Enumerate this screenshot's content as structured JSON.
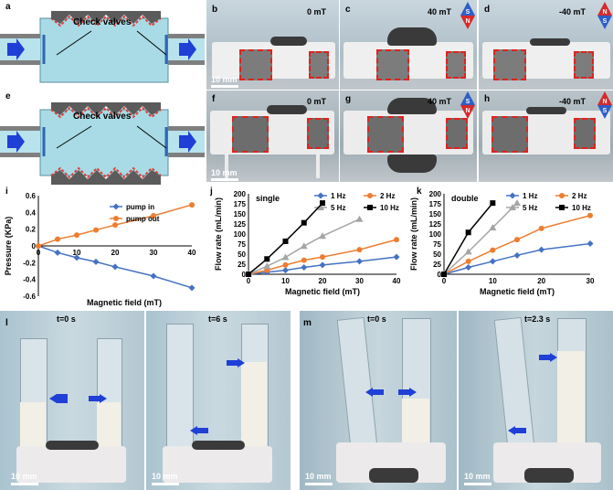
{
  "panel_labels": {
    "a": "a",
    "b": "b",
    "c": "c",
    "d": "d",
    "e": "e",
    "f": "f",
    "g": "g",
    "h": "h",
    "i": "i",
    "j": "j",
    "k": "k",
    "l": "l",
    "m": "m"
  },
  "diagrams": {
    "a": {
      "label": "Check valves"
    },
    "e": {
      "label": "Check valves"
    }
  },
  "photos": {
    "b": {
      "field": "0 mT",
      "scale": "10 mm"
    },
    "c": {
      "field": "40 mT"
    },
    "d": {
      "field": "-40 mT"
    },
    "f": {
      "field": "0 mT",
      "scale": "10 mm"
    },
    "g": {
      "field": "40 mT"
    },
    "h": {
      "field": "-40 mT"
    },
    "l1": {
      "time": "t=0 s",
      "scale": "10 mm"
    },
    "l2": {
      "time": "t=6 s",
      "scale": "10 mm"
    },
    "m1": {
      "time": "t=0 s",
      "scale": "10 mm"
    },
    "m2": {
      "time": "t=2.3 s",
      "scale": "10 mm"
    }
  },
  "magnet_labels": {
    "s": "S",
    "n": "N"
  },
  "chart_data": [
    {
      "id": "i",
      "type": "line",
      "xlabel": "Magnetic field (mT)",
      "ylabel": "Pressure (KPa)",
      "xlim": [
        0,
        40
      ],
      "ylim": [
        -0.6,
        0.6
      ],
      "xticks": [
        "0",
        "10",
        "20",
        "30",
        "40"
      ],
      "yticks": [
        "-0.6",
        "-0.4",
        "-0.2",
        "0",
        "0.2",
        "0.4",
        "0.6"
      ],
      "x": [
        0,
        5,
        10,
        15,
        20,
        30,
        40
      ],
      "series": [
        {
          "name": "pump in",
          "color": "#4472c4",
          "marker": "diamond",
          "values": [
            0,
            -0.08,
            -0.14,
            -0.19,
            -0.25,
            -0.36,
            -0.5
          ]
        },
        {
          "name": "pump out",
          "color": "#ed7d31",
          "marker": "circle",
          "values": [
            0,
            0.08,
            0.13,
            0.19,
            0.25,
            0.36,
            0.49
          ]
        }
      ]
    },
    {
      "id": "j",
      "type": "line",
      "annotation": "single",
      "xlabel": "Magnetic field (mT)",
      "ylabel": "Flow rate (mL/min)",
      "xlim": [
        0,
        40
      ],
      "ylim": [
        0,
        200
      ],
      "xticks": [
        "0",
        "10",
        "20",
        "30",
        "40"
      ],
      "yticks": [
        "0",
        "25",
        "50",
        "75",
        "100",
        "125",
        "150",
        "175",
        "200"
      ],
      "series": [
        {
          "name": "1 Hz",
          "color": "#4472c4",
          "marker": "diamond",
          "x": [
            0,
            5,
            10,
            15,
            20,
            30,
            40
          ],
          "values": [
            0,
            5,
            10,
            17,
            23,
            32,
            43
          ]
        },
        {
          "name": "2 Hz",
          "color": "#ed7d31",
          "marker": "circle",
          "x": [
            0,
            5,
            10,
            15,
            20,
            30,
            40
          ],
          "values": [
            0,
            10,
            23,
            35,
            43,
            61,
            86
          ]
        },
        {
          "name": "5 Hz",
          "color": "#a5a5a5",
          "marker": "triangle",
          "x": [
            0,
            5,
            10,
            15,
            20,
            30
          ],
          "values": [
            0,
            20,
            42,
            70,
            95,
            137
          ]
        },
        {
          "name": "10 Hz",
          "color": "#000000",
          "marker": "square",
          "x": [
            0,
            5,
            10,
            15,
            20
          ],
          "values": [
            0,
            38,
            82,
            128,
            177
          ]
        }
      ]
    },
    {
      "id": "k",
      "type": "line",
      "annotation": "double",
      "xlabel": "Magnetic field (mT)",
      "ylabel": "Flow rate (mL/min)",
      "xlim": [
        0,
        30
      ],
      "ylim": [
        0,
        200
      ],
      "xticks": [
        "0",
        "10",
        "20",
        "30"
      ],
      "yticks": [
        "0",
        "25",
        "50",
        "75",
        "100",
        "125",
        "150",
        "175",
        "200"
      ],
      "series": [
        {
          "name": "1 Hz",
          "color": "#4472c4",
          "marker": "diamond",
          "x": [
            0,
            5,
            10,
            15,
            20,
            30
          ],
          "values": [
            0,
            17,
            32,
            47,
            61,
            76
          ]
        },
        {
          "name": "2 Hz",
          "color": "#ed7d31",
          "marker": "circle",
          "x": [
            0,
            5,
            10,
            15,
            20,
            30
          ],
          "values": [
            0,
            32,
            60,
            86,
            114,
            146
          ]
        },
        {
          "name": "5 Hz",
          "color": "#a5a5a5",
          "marker": "triangle",
          "x": [
            0,
            5,
            10,
            15
          ],
          "values": [
            0,
            56,
            116,
            177
          ]
        },
        {
          "name": "10 Hz",
          "color": "#000000",
          "marker": "square",
          "x": [
            0,
            5,
            10
          ],
          "values": [
            0,
            104,
            177
          ]
        }
      ]
    }
  ]
}
